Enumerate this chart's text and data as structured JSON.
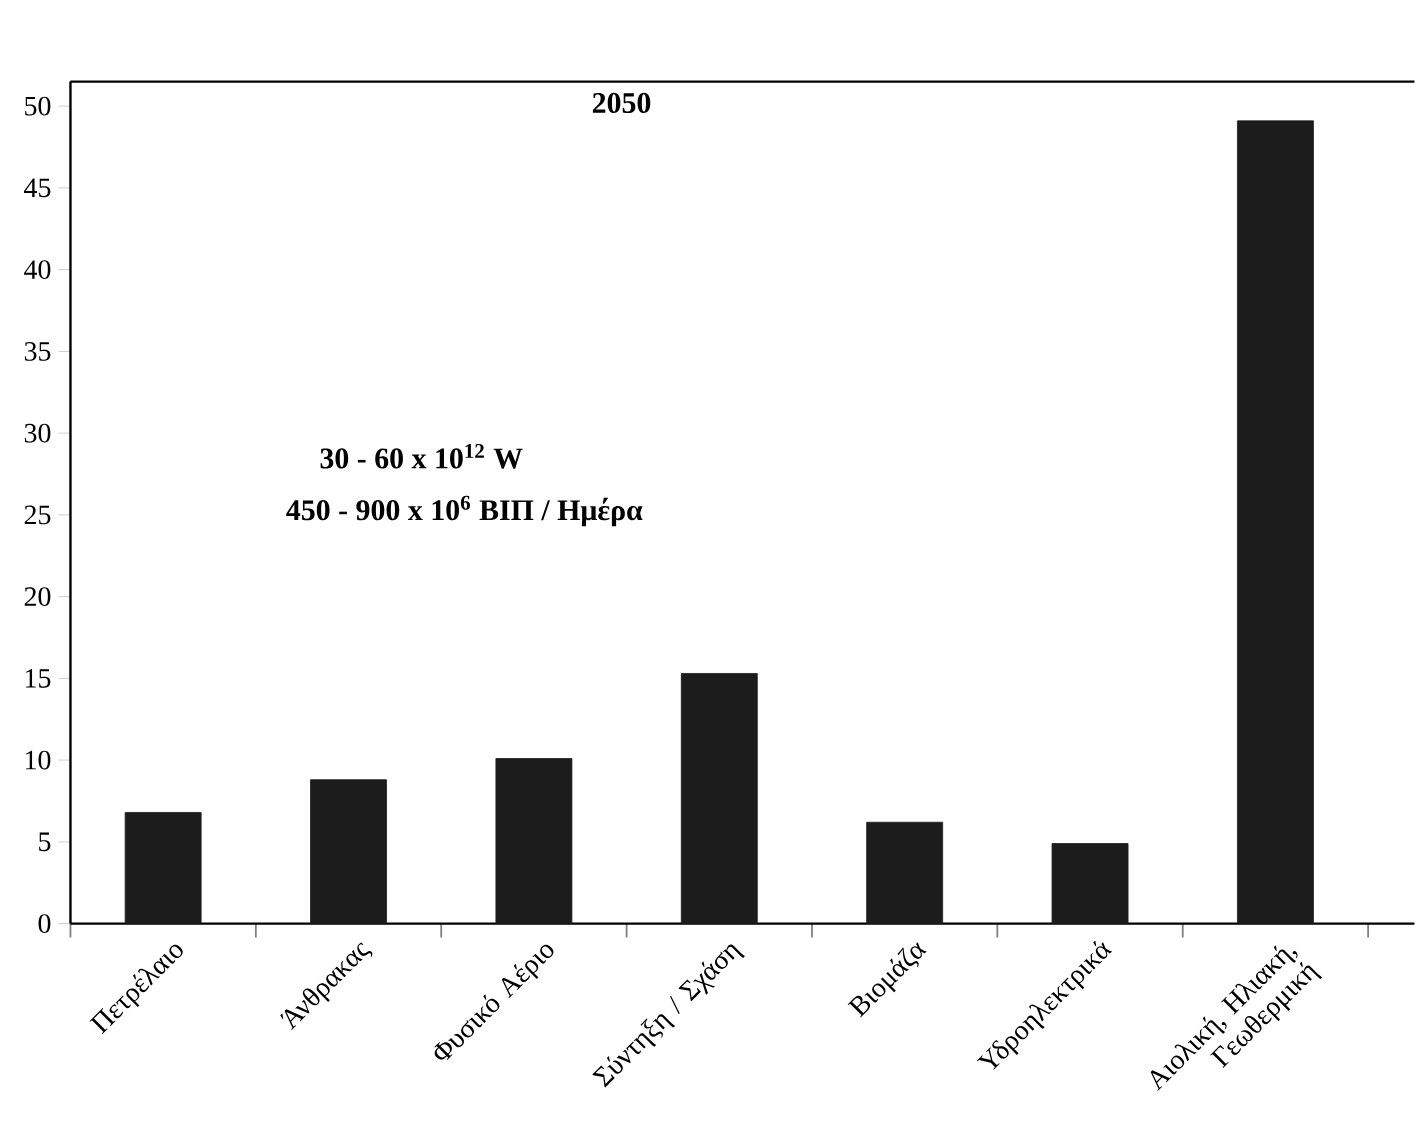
{
  "chart_data": {
    "type": "bar",
    "title": "2050",
    "annotations": [
      "30 - 60 x 10$^{12}$ W",
      "450 - 900 x 10$^{6}$ ΒΙΠ / Ημέρα"
    ],
    "categories": [
      "Πετρέλαιο",
      "Άνθρακας",
      "Φυσικό Αέριο",
      "Σύντηξη / Σχάση",
      "Βιομάζα",
      "Υδροηλεκτρικά",
      "Αιολική, Ηλιακή, Γεωθερμική"
    ],
    "values": [
      6.8,
      8.8,
      10.1,
      15.3,
      6.2,
      4.9,
      49.1
    ],
    "color": "#1c1c1c",
    "ylim": [
      0,
      51.5
    ],
    "yticks": [
      0,
      5,
      10,
      15,
      20,
      25,
      30,
      35,
      40,
      45,
      50
    ]
  }
}
